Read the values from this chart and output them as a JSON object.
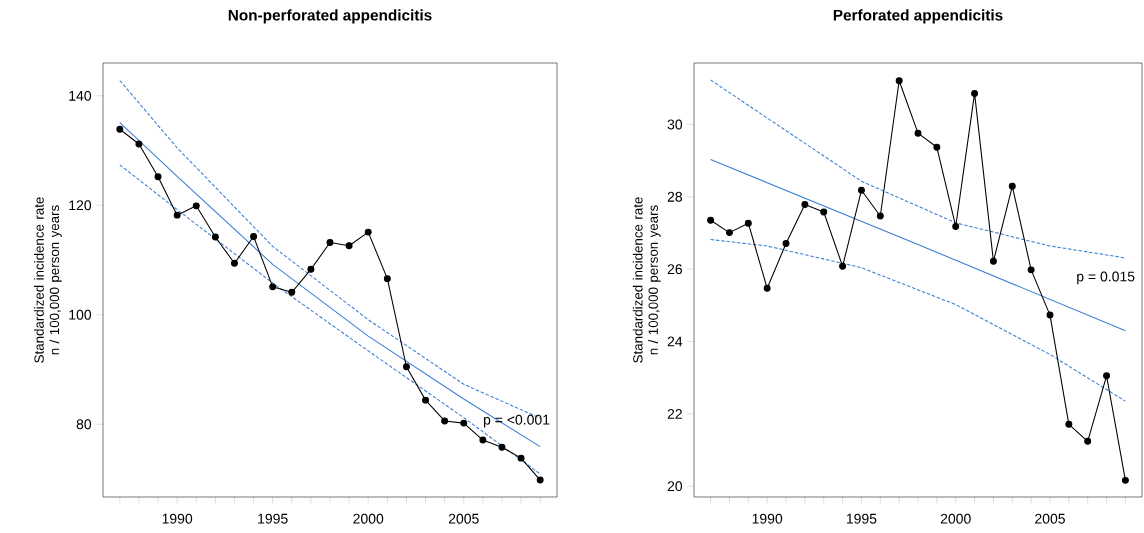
{
  "chart_data": [
    {
      "type": "line",
      "title": "Non-perforated appendicitis",
      "ylabel": "Standardized incidence rate n / 100,000 person years",
      "xlim": [
        1986.12,
        2009.88
      ],
      "ylim": [
        66.7,
        146
      ],
      "xticks": [
        {
          "value": 1987,
          "label": null
        },
        {
          "value": 1988,
          "label": null
        },
        {
          "value": 1989,
          "label": null
        },
        1990,
        {
          "value": 1991,
          "label": null
        },
        {
          "value": 1992,
          "label": null
        },
        {
          "value": 1993,
          "label": null
        },
        {
          "value": 1994,
          "label": null
        },
        1995,
        {
          "value": 1996,
          "label": null
        },
        {
          "value": 1997,
          "label": null
        },
        {
          "value": 1998,
          "label": null
        },
        {
          "value": 1999,
          "label": null
        },
        2000,
        {
          "value": 2001,
          "label": null
        },
        {
          "value": 2002,
          "label": null
        },
        {
          "value": 2003,
          "label": null
        },
        {
          "value": 2004,
          "label": null
        },
        2005,
        {
          "value": 2006,
          "label": null
        },
        {
          "value": 2007,
          "label": null
        },
        {
          "value": 2008,
          "label": null
        },
        {
          "value": 2009,
          "label": null
        }
      ],
      "yticks": [
        80,
        100,
        120,
        140
      ],
      "x": [
        1987,
        1988,
        1989,
        1990,
        1991,
        1992,
        1993,
        1994,
        1995,
        1996,
        1997,
        1998,
        1999,
        2000,
        2001,
        2002,
        2003,
        2004,
        2005,
        2006,
        2007,
        2008,
        2009
      ],
      "series": [
        {
          "color": "#3a7fd5",
          "x": [
            1987,
            1990,
            1995,
            2000,
            2005,
            2009
          ],
          "values": [
            142.8,
            130.5,
            112.5,
            99.1,
            87.3,
            81.1
          ],
          "line_style": "dashed"
        },
        {
          "color": "#3a7fd5",
          "x": [
            1987,
            1990,
            1995,
            2000,
            2005,
            2009
          ],
          "values": [
            127.4,
            119.2,
            105.8,
            93.4,
            81.2,
            70.9
          ],
          "line_style": "dashed"
        },
        {
          "color": "#3a7fd5",
          "x": [
            1987,
            1990,
            1995,
            2000,
            2005,
            2009
          ],
          "values": [
            135.1,
            125.3,
            109.2,
            96.1,
            84.6,
            75.9
          ]
        },
        {
          "color": "#000000",
          "marker": "circle",
          "values": [
            133.9,
            131.2,
            125.2,
            118.2,
            119.9,
            114.2,
            109.4,
            114.3,
            105.1,
            104.1,
            108.3,
            113.2,
            112.6,
            115.1,
            106.6,
            90.5,
            84.4,
            80.6,
            80.2,
            77.1,
            75.8,
            73.8,
            69.8
          ]
        }
      ],
      "annotations": [
        "p = <0.001"
      ]
    },
    {
      "type": "line",
      "title": "Perforated appendicitis",
      "ylabel": "Standardized incidence rate n / 100,000 person years",
      "xlim": [
        1986.12,
        2009.88
      ],
      "ylim": [
        19.7,
        31.7
      ],
      "xticks": [
        {
          "value": 1987,
          "label": null
        },
        {
          "value": 1988,
          "label": null
        },
        {
          "value": 1989,
          "label": null
        },
        1990,
        {
          "value": 1991,
          "label": null
        },
        {
          "value": 1992,
          "label": null
        },
        {
          "value": 1993,
          "label": null
        },
        {
          "value": 1994,
          "label": null
        },
        1995,
        {
          "value": 1996,
          "label": null
        },
        {
          "value": 1997,
          "label": null
        },
        {
          "value": 1998,
          "label": null
        },
        {
          "value": 1999,
          "label": null
        },
        2000,
        {
          "value": 2001,
          "label": null
        },
        {
          "value": 2002,
          "label": null
        },
        {
          "value": 2003,
          "label": null
        },
        {
          "value": 2004,
          "label": null
        },
        2005,
        {
          "value": 2006,
          "label": null
        },
        {
          "value": 2007,
          "label": null
        },
        {
          "value": 2008,
          "label": null
        },
        {
          "value": 2009,
          "label": null
        }
      ],
      "yticks": [
        20,
        22,
        24,
        26,
        28,
        30
      ],
      "x": [
        1987,
        1988,
        1989,
        1990,
        1991,
        1992,
        1993,
        1994,
        1995,
        1996,
        1997,
        1998,
        1999,
        2000,
        2001,
        2002,
        2003,
        2004,
        2005,
        2006,
        2007,
        2008,
        2009
      ],
      "series": [
        {
          "color": "#3a7fd5",
          "x": [
            1987,
            1990,
            1995,
            2000,
            2005,
            2009
          ],
          "values": [
            31.23,
            30.18,
            28.43,
            27.28,
            26.64,
            26.31
          ],
          "line_style": "dashed"
        },
        {
          "color": "#3a7fd5",
          "x": [
            1987,
            1990,
            1995,
            2000,
            2005,
            2009
          ],
          "values": [
            26.82,
            26.64,
            26.04,
            25.02,
            23.64,
            22.35
          ],
          "line_style": "dashed"
        },
        {
          "color": "#3a7fd5",
          "x": [
            1987,
            1998,
            2009
          ],
          "values": [
            29.03,
            26.68,
            24.3
          ]
        },
        {
          "color": "#000000",
          "marker": "circle",
          "values": [
            27.35,
            27.01,
            27.27,
            25.47,
            26.71,
            27.79,
            27.58,
            26.08,
            28.18,
            27.47,
            31.21,
            29.76,
            29.37,
            27.18,
            30.86,
            26.22,
            28.29,
            25.98,
            24.73,
            21.71,
            21.24,
            23.05,
            20.16
          ]
        }
      ],
      "annotations": [
        "p = 0.015"
      ]
    }
  ]
}
